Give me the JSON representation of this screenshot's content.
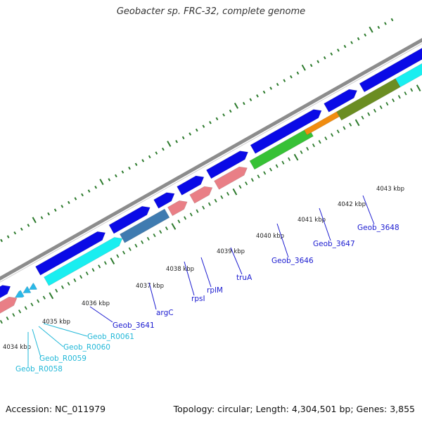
{
  "title": "Geobacter sp. FRC-32, complete genome",
  "accession": "Accession: NC_011979",
  "summary": "Topology: circular; Length: 4,304,501 bp; Genes: 3,855",
  "colors": {
    "backbone": "#8c8c8c",
    "plus_cds": "#0a0ae6",
    "minus_cds_cyan": "#19eef0",
    "minus_cds_pink": "#e97f86",
    "green_block": "#37c136",
    "steel_block": "#3f7bb0",
    "olive_block": "#6b8d22",
    "orange_block": "#f08c10",
    "ticks": "#2c7a2c",
    "gene_label_blue": "#1a1ad0",
    "rna_label_cyan": "#22b8d8"
  },
  "ticks": [
    "4034 kbp",
    "4035 kbp",
    "4036 kbp",
    "4037 kbp",
    "4038 kbp",
    "4039 kbp",
    "4040 kbp",
    "4041 kbp",
    "4042 kbp",
    "4043 kbp"
  ],
  "genes": [
    {
      "name": "Geob_3641",
      "kind": "cds"
    },
    {
      "name": "argC",
      "kind": "cds"
    },
    {
      "name": "rpsI",
      "kind": "cds"
    },
    {
      "name": "rplM",
      "kind": "cds"
    },
    {
      "name": "truA",
      "kind": "cds"
    },
    {
      "name": "Geob_3646",
      "kind": "cds"
    },
    {
      "name": "Geob_3647",
      "kind": "cds"
    },
    {
      "name": "Geob_3648",
      "kind": "cds"
    }
  ],
  "rnas": [
    {
      "name": "Geob_R0061"
    },
    {
      "name": "Geob_R0060"
    },
    {
      "name": "Geob_R0059"
    },
    {
      "name": "Geob_R0058"
    }
  ]
}
